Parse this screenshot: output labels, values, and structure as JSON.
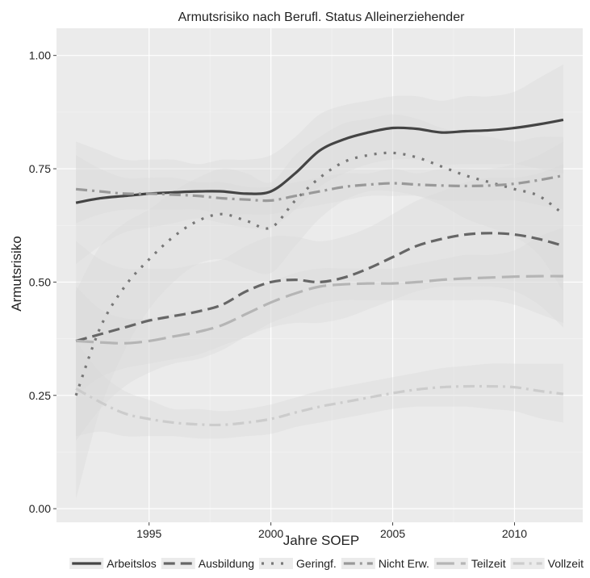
{
  "chart_data": {
    "type": "line",
    "title": "Armutsrisiko nach Berufl. Status Alleinerziehender",
    "xlabel": "Jahre SOEP",
    "ylabel": "Armutsrisiko",
    "xlim": [
      1991.2,
      2012.8
    ],
    "ylim": [
      -0.03,
      1.06
    ],
    "x_ticks": [
      1995,
      2000,
      2005,
      2010
    ],
    "x_tick_labels": [
      "1995",
      "2000",
      "2005",
      "2010"
    ],
    "y_ticks": [
      0.0,
      0.25,
      0.5,
      0.75,
      1.0
    ],
    "y_tick_labels": [
      "0.00",
      "0.25",
      "0.50",
      "0.75",
      "1.00"
    ],
    "grid": true,
    "legend_position": "bottom",
    "background": "#ebebeb",
    "series": [
      {
        "name": "Arbeitslos",
        "color": "#444444",
        "dash": "solid",
        "x": [
          1992,
          1993,
          1994,
          1995,
          1996,
          1997,
          1998,
          1999,
          2000,
          2001,
          2002,
          2003,
          2004,
          2005,
          2006,
          2007,
          2008,
          2009,
          2010,
          2011,
          2012
        ],
        "y": [
          0.675,
          0.685,
          0.69,
          0.695,
          0.698,
          0.7,
          0.7,
          0.695,
          0.7,
          0.74,
          0.79,
          0.815,
          0.83,
          0.84,
          0.838,
          0.83,
          0.833,
          0.835,
          0.84,
          0.848,
          0.858
        ],
        "ci_low": [
          0.54,
          0.58,
          0.61,
          0.62,
          0.63,
          0.64,
          0.63,
          0.62,
          0.62,
          0.66,
          0.71,
          0.74,
          0.76,
          0.77,
          0.77,
          0.76,
          0.76,
          0.76,
          0.76,
          0.75,
          0.74
        ],
        "ci_high": [
          0.81,
          0.79,
          0.77,
          0.77,
          0.77,
          0.76,
          0.77,
          0.77,
          0.78,
          0.82,
          0.87,
          0.89,
          0.9,
          0.91,
          0.91,
          0.9,
          0.91,
          0.91,
          0.92,
          0.95,
          0.98
        ]
      },
      {
        "name": "Ausbildung",
        "color": "#666666",
        "dash": "long",
        "x": [
          1992,
          1993,
          1994,
          1995,
          1996,
          1997,
          1998,
          1999,
          2000,
          2001,
          2002,
          2003,
          2004,
          2005,
          2006,
          2007,
          2008,
          2009,
          2010,
          2011,
          2012
        ],
        "y": [
          0.37,
          0.385,
          0.4,
          0.415,
          0.425,
          0.435,
          0.45,
          0.48,
          0.5,
          0.505,
          0.5,
          0.51,
          0.53,
          0.555,
          0.58,
          0.595,
          0.605,
          0.608,
          0.605,
          0.595,
          0.58
        ],
        "ci_low": [
          0.15,
          0.22,
          0.27,
          0.3,
          0.32,
          0.33,
          0.35,
          0.38,
          0.4,
          0.41,
          0.41,
          0.42,
          0.44,
          0.46,
          0.48,
          0.49,
          0.49,
          0.49,
          0.48,
          0.45,
          0.4
        ],
        "ci_high": [
          0.59,
          0.55,
          0.53,
          0.53,
          0.53,
          0.54,
          0.55,
          0.58,
          0.6,
          0.6,
          0.59,
          0.6,
          0.62,
          0.65,
          0.68,
          0.7,
          0.72,
          0.73,
          0.73,
          0.74,
          0.76
        ]
      },
      {
        "name": "Geringf.",
        "color": "#777777",
        "dash": "dotted",
        "x": [
          1992,
          1993,
          1994,
          1995,
          1996,
          1997,
          1998,
          1999,
          2000,
          2001,
          2002,
          2003,
          2004,
          2005,
          2006,
          2007,
          2008,
          2009,
          2010,
          2011,
          2012
        ],
        "y": [
          0.25,
          0.4,
          0.49,
          0.55,
          0.6,
          0.635,
          0.65,
          0.635,
          0.62,
          0.68,
          0.73,
          0.765,
          0.78,
          0.785,
          0.775,
          0.755,
          0.735,
          0.72,
          0.705,
          0.69,
          0.65
        ],
        "ci_low": [
          0.02,
          0.22,
          0.35,
          0.44,
          0.5,
          0.54,
          0.55,
          0.53,
          0.52,
          0.58,
          0.64,
          0.68,
          0.7,
          0.7,
          0.69,
          0.67,
          0.64,
          0.62,
          0.6,
          0.56,
          0.48
        ],
        "ci_high": [
          0.48,
          0.58,
          0.63,
          0.66,
          0.7,
          0.73,
          0.75,
          0.74,
          0.72,
          0.78,
          0.82,
          0.85,
          0.86,
          0.87,
          0.86,
          0.84,
          0.83,
          0.82,
          0.81,
          0.82,
          0.82
        ]
      },
      {
        "name": "Nicht Erw.",
        "color": "#999999",
        "dash": "dashdot",
        "x": [
          1992,
          1993,
          1994,
          1995,
          1996,
          1997,
          1998,
          1999,
          2000,
          2001,
          2002,
          2003,
          2004,
          2005,
          2006,
          2007,
          2008,
          2009,
          2010,
          2011,
          2012
        ],
        "y": [
          0.705,
          0.7,
          0.695,
          0.695,
          0.693,
          0.69,
          0.685,
          0.682,
          0.68,
          0.69,
          0.7,
          0.71,
          0.715,
          0.718,
          0.715,
          0.713,
          0.712,
          0.713,
          0.717,
          0.725,
          0.735
        ],
        "ci_low": [
          0.63,
          0.65,
          0.66,
          0.66,
          0.66,
          0.66,
          0.65,
          0.65,
          0.65,
          0.66,
          0.67,
          0.68,
          0.69,
          0.69,
          0.69,
          0.68,
          0.68,
          0.68,
          0.68,
          0.67,
          0.66
        ],
        "ci_high": [
          0.78,
          0.75,
          0.73,
          0.73,
          0.73,
          0.72,
          0.72,
          0.71,
          0.71,
          0.72,
          0.73,
          0.74,
          0.74,
          0.75,
          0.74,
          0.75,
          0.75,
          0.75,
          0.76,
          0.78,
          0.81
        ]
      },
      {
        "name": "Teilzeit",
        "color": "#b5b5b5",
        "dash": "longdash",
        "x": [
          1992,
          1993,
          1994,
          1995,
          1996,
          1997,
          1998,
          1999,
          2000,
          2001,
          2002,
          2003,
          2004,
          2005,
          2006,
          2007,
          2008,
          2009,
          2010,
          2011,
          2012
        ],
        "y": [
          0.37,
          0.367,
          0.365,
          0.37,
          0.38,
          0.39,
          0.405,
          0.43,
          0.455,
          0.475,
          0.49,
          0.495,
          0.497,
          0.497,
          0.5,
          0.505,
          0.508,
          0.51,
          0.512,
          0.513,
          0.513
        ],
        "ci_low": [
          0.25,
          0.29,
          0.31,
          0.32,
          0.33,
          0.34,
          0.36,
          0.38,
          0.41,
          0.43,
          0.45,
          0.46,
          0.46,
          0.46,
          0.46,
          0.46,
          0.46,
          0.46,
          0.45,
          0.43,
          0.41
        ],
        "ci_high": [
          0.49,
          0.44,
          0.42,
          0.42,
          0.43,
          0.44,
          0.45,
          0.48,
          0.5,
          0.52,
          0.53,
          0.53,
          0.53,
          0.53,
          0.54,
          0.55,
          0.56,
          0.56,
          0.57,
          0.6,
          0.62
        ]
      },
      {
        "name": "Vollzeit",
        "color": "#cccccc",
        "dash": "dashdot",
        "x": [
          1992,
          1993,
          1994,
          1995,
          1996,
          1997,
          1998,
          1999,
          2000,
          2001,
          2002,
          2003,
          2004,
          2005,
          2006,
          2007,
          2008,
          2009,
          2010,
          2011,
          2012
        ],
        "y": [
          0.265,
          0.235,
          0.21,
          0.198,
          0.19,
          0.186,
          0.185,
          0.19,
          0.198,
          0.212,
          0.225,
          0.235,
          0.245,
          0.255,
          0.263,
          0.268,
          0.27,
          0.27,
          0.268,
          0.26,
          0.253
        ],
        "ci_low": [
          0.16,
          0.17,
          0.16,
          0.16,
          0.16,
          0.155,
          0.155,
          0.16,
          0.165,
          0.18,
          0.19,
          0.2,
          0.21,
          0.22,
          0.225,
          0.225,
          0.225,
          0.22,
          0.215,
          0.2,
          0.19
        ],
        "ci_high": [
          0.37,
          0.3,
          0.26,
          0.24,
          0.22,
          0.22,
          0.215,
          0.22,
          0.23,
          0.245,
          0.26,
          0.27,
          0.28,
          0.29,
          0.3,
          0.31,
          0.315,
          0.32,
          0.32,
          0.32,
          0.32
        ]
      }
    ]
  }
}
